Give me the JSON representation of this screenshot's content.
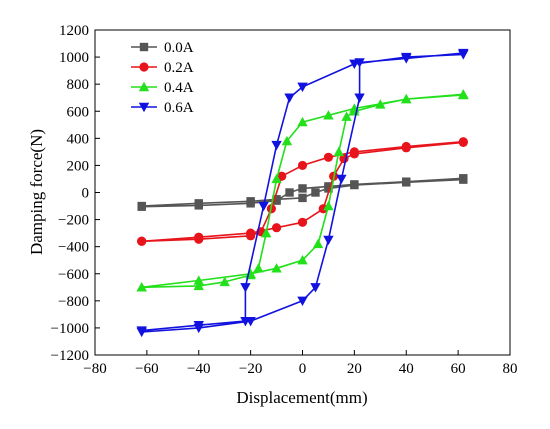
{
  "chart_data": {
    "type": "line",
    "xlabel": "Displacement(mm)",
    "ylabel": "Damping force(N)",
    "xlim": [
      -80,
      80
    ],
    "ylim": [
      -1200,
      1200
    ],
    "xticks": [
      -80,
      -60,
      -40,
      -20,
      0,
      20,
      40,
      60,
      80
    ],
    "yticks": [
      -1200,
      -1000,
      -800,
      -600,
      -400,
      -200,
      0,
      200,
      400,
      600,
      800,
      1000,
      1200
    ],
    "grid": false,
    "legend_position": "top-left",
    "series": [
      {
        "name": "0.0A",
        "color": "#555555",
        "marker": "square",
        "upper": [
          [
            -62,
            -100
          ],
          [
            -40,
            -80
          ],
          [
            -20,
            -65
          ],
          [
            -10,
            -50
          ],
          [
            0,
            -40
          ],
          [
            5,
            0
          ],
          [
            10,
            30
          ],
          [
            20,
            55
          ],
          [
            40,
            75
          ],
          [
            62,
            95
          ]
        ],
        "lower": [
          [
            62,
            105
          ],
          [
            40,
            80
          ],
          [
            20,
            60
          ],
          [
            10,
            45
          ],
          [
            0,
            30
          ],
          [
            -5,
            0
          ],
          [
            -10,
            -60
          ],
          [
            -20,
            -80
          ],
          [
            -40,
            -95
          ],
          [
            -62,
            -105
          ]
        ]
      },
      {
        "name": "0.2A",
        "color": "#e8141b",
        "marker": "circle",
        "upper": [
          [
            -62,
            -360
          ],
          [
            -40,
            -330
          ],
          [
            -20,
            -300
          ],
          [
            -10,
            -260
          ],
          [
            0,
            -220
          ],
          [
            8,
            -120
          ],
          [
            12,
            120
          ],
          [
            16,
            250
          ],
          [
            20,
            285
          ],
          [
            40,
            330
          ],
          [
            62,
            370
          ]
        ],
        "lower": [
          [
            62,
            375
          ],
          [
            40,
            340
          ],
          [
            20,
            300
          ],
          [
            10,
            260
          ],
          [
            0,
            200
          ],
          [
            -8,
            120
          ],
          [
            -12,
            -120
          ],
          [
            -16,
            -290
          ],
          [
            -20,
            -320
          ],
          [
            -40,
            -345
          ],
          [
            -62,
            -360
          ]
        ]
      },
      {
        "name": "0.4A",
        "color": "#22e01a",
        "marker": "triangle-up",
        "upper": [
          [
            -62,
            -700
          ],
          [
            -40,
            -650
          ],
          [
            -20,
            -600
          ],
          [
            -10,
            -560
          ],
          [
            0,
            -500
          ],
          [
            6,
            -380
          ],
          [
            10,
            -100
          ],
          [
            14,
            300
          ],
          [
            17,
            560
          ],
          [
            20,
            600
          ],
          [
            30,
            650
          ],
          [
            40,
            690
          ],
          [
            62,
            720
          ]
        ],
        "lower": [
          [
            62,
            725
          ],
          [
            40,
            690
          ],
          [
            20,
            620
          ],
          [
            10,
            570
          ],
          [
            0,
            520
          ],
          [
            -6,
            380
          ],
          [
            -10,
            100
          ],
          [
            -14,
            -300
          ],
          [
            -17,
            -560
          ],
          [
            -20,
            -610
          ],
          [
            -30,
            -660
          ],
          [
            -40,
            -690
          ],
          [
            -62,
            -700
          ]
        ]
      },
      {
        "name": "0.6A",
        "color": "#1212e0",
        "marker": "triangle-down",
        "upper": [
          [
            -62,
            -1020
          ],
          [
            -40,
            -980
          ],
          [
            -22,
            -950
          ],
          [
            -22,
            -700
          ],
          [
            -15,
            -100
          ],
          [
            -10,
            350
          ],
          [
            -5,
            700
          ],
          [
            0,
            780
          ],
          [
            20,
            950
          ],
          [
            40,
            1000
          ],
          [
            62,
            1020
          ]
        ],
        "lower": [
          [
            62,
            1030
          ],
          [
            40,
            990
          ],
          [
            22,
            960
          ],
          [
            22,
            700
          ],
          [
            15,
            100
          ],
          [
            10,
            -350
          ],
          [
            5,
            -700
          ],
          [
            0,
            -800
          ],
          [
            -20,
            -950
          ],
          [
            -40,
            -1000
          ],
          [
            -62,
            -1030
          ]
        ]
      }
    ]
  }
}
